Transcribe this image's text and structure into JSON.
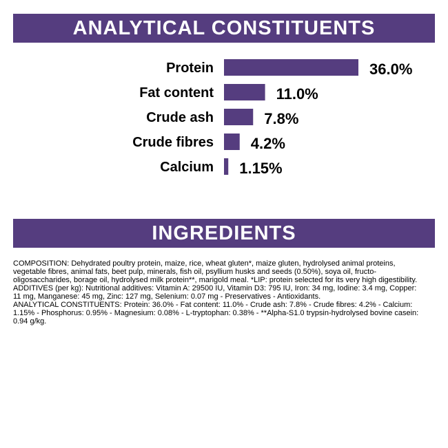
{
  "colors": {
    "accent": "#553D7F"
  },
  "analytical": {
    "heading": "ANALYTICAL CONSTITUENTS"
  },
  "chart_data": {
    "type": "bar",
    "orientation": "horizontal",
    "categories": [
      "Protein",
      "Fat content",
      "Crude ash",
      "Crude fibres",
      "Calcium"
    ],
    "values": [
      36.0,
      11.0,
      7.8,
      4.2,
      1.15
    ],
    "value_labels": [
      "36.0%",
      "11.0%",
      "7.8%",
      "4.2%",
      "1.15%"
    ],
    "bar_color": "#553D7F",
    "grid": false,
    "legend": "none"
  },
  "ingredients": {
    "heading": "INGREDIENTS",
    "composition": "COMPOSITION: Dehydrated poultry protein, maize, rice, wheat gluten*, maize gluten, hydrolysed animal proteins, vegetable fibres, animal fats, beet pulp, minerals, fish oil, psyllium husks and seeds (0.50%), soya oil, fructo-oligosaccharides, borage oil, hydrolysed milk protein**, marigold meal. *LIP: protein selected for its very high digestibility.",
    "additives": "ADDITIVES (per kg): Nutritional additives: Vitamin A: 29500 IU, Vitamin D3: 795 IU, Iron: 34 mg, Iodine: 3.4 mg, Copper: 11 mg, Manganese: 45 mg, Zinc: 127 mg, Selenium: 0.07 mg - Preservatives - Antioxidants.",
    "constituents": "ANALYTICAL CONSTITUENTS: Protein: 36.0% - Fat content: 11.0% - Crude ash: 7.8% - Crude fibres: 4.2% - Calcium: 1.15% - Phosphorus: 0.95% - Magnesium: 0.08% - L-tryptophan: 0.38% - **Alpha-S1.0 trypsin-hydrolysed bovine casein: 0.94 g/kg."
  }
}
